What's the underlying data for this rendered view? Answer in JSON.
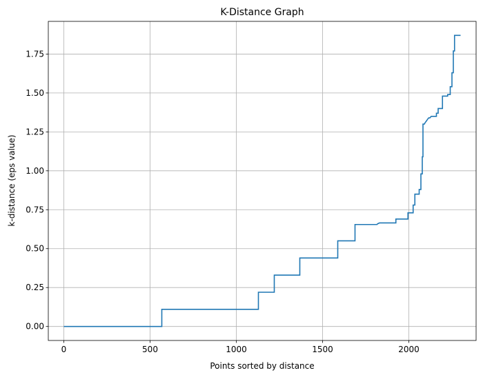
{
  "chart_data": {
    "type": "line",
    "title": "K-Distance Graph",
    "xlabel": "Points sorted by distance",
    "ylabel": "k-distance (eps value)",
    "xlim": [
      -90,
      2390
    ],
    "ylim": [
      -0.09,
      1.96
    ],
    "x_ticks": [
      0,
      500,
      1000,
      1500,
      2000
    ],
    "x_tick_labels": [
      "0",
      "500",
      "1000",
      "1500",
      "2000"
    ],
    "y_ticks": [
      0,
      0.25,
      0.5,
      0.75,
      1.0,
      1.25,
      1.5,
      1.75
    ],
    "y_tick_labels": [
      "0.00",
      "0.25",
      "0.50",
      "0.75",
      "1.00",
      "1.25",
      "1.50",
      "1.75"
    ],
    "grid": true,
    "color": "#1f77b4",
    "series": [
      {
        "x": [
          0,
          568,
          568,
          1128,
          1128,
          1220,
          1220,
          1368,
          1368,
          1588,
          1588,
          1688,
          1688,
          1815,
          1820,
          1830,
          1925,
          1925,
          1995,
          1995,
          2025,
          2025,
          2035,
          2035,
          2060,
          2060,
          2070,
          2070,
          2078,
          2078,
          2082,
          2082,
          2090,
          2095,
          2102,
          2108,
          2115,
          2122,
          2130,
          2140,
          2155,
          2160,
          2160,
          2170,
          2170,
          2195,
          2195,
          2225,
          2225,
          2240,
          2240,
          2250,
          2250,
          2258,
          2258,
          2265,
          2265,
          2290,
          2290,
          2300
        ],
        "y": [
          0.0,
          0.0,
          0.11,
          0.11,
          0.22,
          0.22,
          0.33,
          0.33,
          0.44,
          0.44,
          0.55,
          0.55,
          0.655,
          0.655,
          0.66,
          0.665,
          0.665,
          0.69,
          0.69,
          0.73,
          0.73,
          0.78,
          0.78,
          0.85,
          0.85,
          0.88,
          0.88,
          0.98,
          0.98,
          1.09,
          1.09,
          1.3,
          1.3,
          1.31,
          1.32,
          1.33,
          1.34,
          1.34,
          1.35,
          1.35,
          1.35,
          1.35,
          1.37,
          1.37,
          1.4,
          1.4,
          1.48,
          1.48,
          1.49,
          1.49,
          1.54,
          1.54,
          1.63,
          1.63,
          1.77,
          1.77,
          1.87,
          1.87,
          1.87,
          1.87
        ]
      }
    ]
  }
}
